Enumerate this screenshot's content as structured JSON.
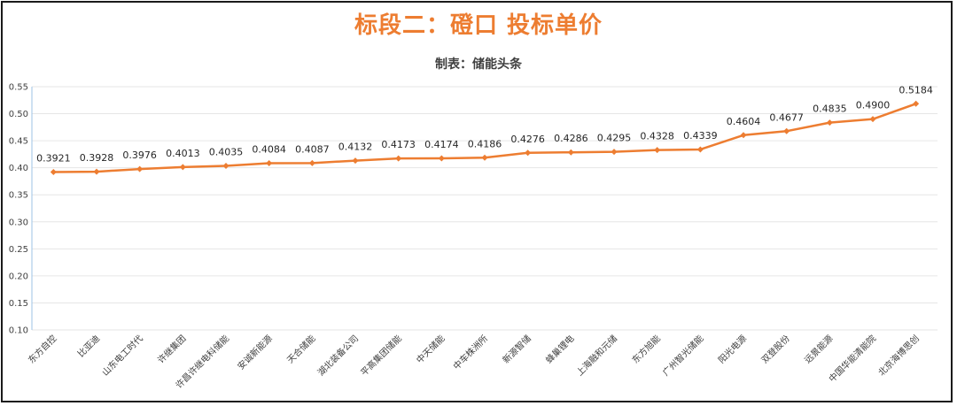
{
  "chart_data": {
    "type": "line",
    "title": "标段二：磴口 投标单价",
    "subtitle": "制表：储能头条",
    "xlabel": "",
    "ylabel": "",
    "ylim": [
      0.1,
      0.55
    ],
    "yticks": [
      "0.10",
      "0.15",
      "0.20",
      "0.25",
      "0.30",
      "0.35",
      "0.40",
      "0.45",
      "0.50",
      "0.55"
    ],
    "grid": true,
    "legend": "none",
    "line_color": "#ed7d31",
    "title_color": "#ed7d31",
    "categories": [
      "东方自控",
      "比亚迪",
      "山东电工时代",
      "许继集团",
      "许昌许继电科储能",
      "安诚新能源",
      "天合储能",
      "湖北装备公司",
      "平高集团储能",
      "中天储能",
      "中车株洲所",
      "新源智储",
      "蜂巢锂电",
      "上海融和元储",
      "东方旭能",
      "广州智光储能",
      "阳光电源",
      "双登股份",
      "远景能源",
      "中国华能清能院",
      "北京海博思创"
    ],
    "series": [
      {
        "values": [
          0.3921,
          0.3928,
          0.3976,
          0.4013,
          0.4035,
          0.4084,
          0.4087,
          0.4132,
          0.4173,
          0.4174,
          0.4186,
          0.4276,
          0.4286,
          0.4295,
          0.4328,
          0.4339,
          0.4604,
          0.4677,
          0.4835,
          0.49,
          0.5184
        ],
        "labels": [
          "0.3921",
          "0.3928",
          "0.3976",
          "0.4013",
          "0.4035",
          "0.4084",
          "0.4087",
          "0.4132",
          "0.4173",
          "0.4174",
          "0.4186",
          "0.4276",
          "0.4286",
          "0.4295",
          "0.4328",
          "0.4339",
          "0.4604",
          "0.4677",
          "0.4835",
          "0.4900",
          "0.5184"
        ]
      }
    ]
  }
}
